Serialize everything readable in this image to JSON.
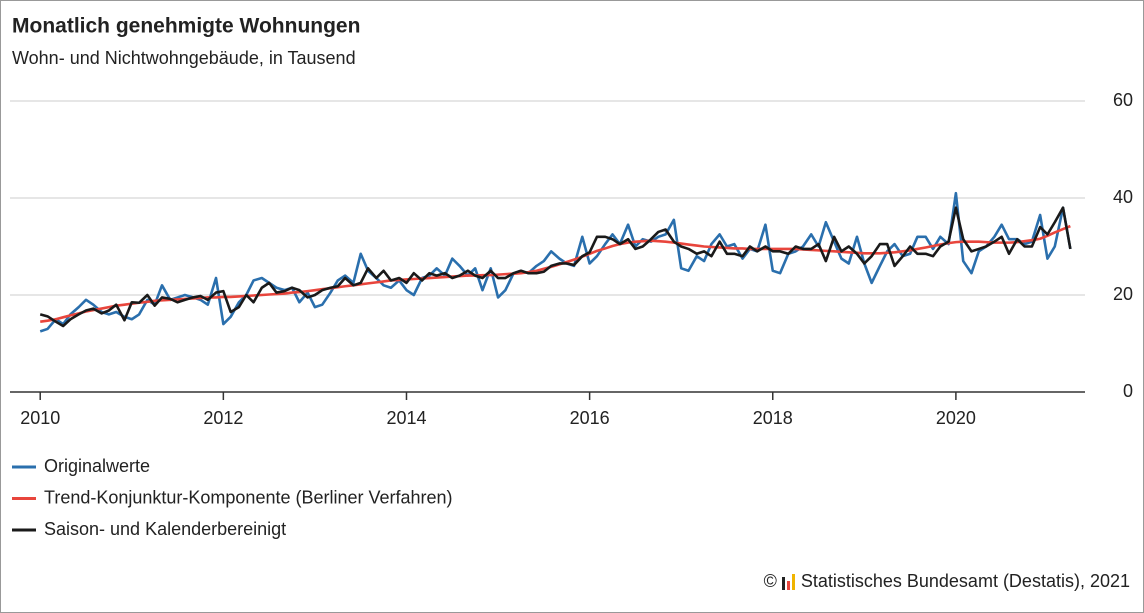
{
  "chart_data": {
    "type": "line",
    "title": "Monatlich genehmigte Wohnungen",
    "subtitle": "Wohn- und Nichtwohngebäude, in Tausend",
    "copyright_symbol": "©",
    "source": "Statistisches Bundesamt (Destatis), 2021",
    "x": [
      2010,
      2010.08,
      2010.17,
      2010.25,
      2010.33,
      2010.42,
      2010.5,
      2010.58,
      2010.67,
      2010.75,
      2010.83,
      2010.92,
      2011,
      2011.08,
      2011.17,
      2011.25,
      2011.33,
      2011.42,
      2011.5,
      2011.58,
      2011.67,
      2011.75,
      2011.83,
      2011.92,
      2012,
      2012.08,
      2012.17,
      2012.25,
      2012.33,
      2012.42,
      2012.5,
      2012.58,
      2012.67,
      2012.75,
      2012.83,
      2012.92,
      2013,
      2013.08,
      2013.17,
      2013.25,
      2013.33,
      2013.42,
      2013.5,
      2013.58,
      2013.67,
      2013.75,
      2013.83,
      2013.92,
      2014,
      2014.08,
      2014.17,
      2014.25,
      2014.33,
      2014.42,
      2014.5,
      2014.58,
      2014.67,
      2014.75,
      2014.83,
      2014.92,
      2015,
      2015.08,
      2015.17,
      2015.25,
      2015.33,
      2015.42,
      2015.5,
      2015.58,
      2015.67,
      2015.75,
      2015.83,
      2015.92,
      2016,
      2016.08,
      2016.17,
      2016.25,
      2016.33,
      2016.42,
      2016.5,
      2016.58,
      2016.67,
      2016.75,
      2016.83,
      2016.92,
      2017,
      2017.08,
      2017.17,
      2017.25,
      2017.33,
      2017.42,
      2017.5,
      2017.58,
      2017.67,
      2017.75,
      2017.83,
      2017.92,
      2018,
      2018.08,
      2018.17,
      2018.25,
      2018.33,
      2018.42,
      2018.5,
      2018.58,
      2018.67,
      2018.75,
      2018.83,
      2018.92,
      2019,
      2019.08,
      2019.17,
      2019.25,
      2019.33,
      2019.42,
      2019.5,
      2019.58,
      2019.67,
      2019.75,
      2019.83,
      2019.92,
      2020,
      2020.08,
      2020.17,
      2020.25,
      2020.33,
      2020.42,
      2020.5,
      2020.58,
      2020.67,
      2020.75,
      2020.83,
      2020.92,
      2021,
      2021.08,
      2021.17,
      2021.25
    ],
    "series": [
      {
        "name": "Originalwerte",
        "color": "#2a6fad",
        "values": [
          12.5,
          13.0,
          15.0,
          14.0,
          16.0,
          17.5,
          19.0,
          18.0,
          16.5,
          16.0,
          16.5,
          15.5,
          15.0,
          16.0,
          19.0,
          18.0,
          22.0,
          19.0,
          19.5,
          20.0,
          19.5,
          19.0,
          18.0,
          23.5,
          14.0,
          15.5,
          18.5,
          20.0,
          23.0,
          23.5,
          22.5,
          21.5,
          21.0,
          21.5,
          18.5,
          20.5,
          17.5,
          18.0,
          20.5,
          23.0,
          24.0,
          22.5,
          28.5,
          25.0,
          23.5,
          22.0,
          21.5,
          23.0,
          21.0,
          20.0,
          23.5,
          24.0,
          25.5,
          24.0,
          27.5,
          26.0,
          24.0,
          25.5,
          21.0,
          25.5,
          19.5,
          21.0,
          24.5,
          25.0,
          24.5,
          26.0,
          27.0,
          29.0,
          27.5,
          26.5,
          26.0,
          32.0,
          26.5,
          28.0,
          30.5,
          32.5,
          30.5,
          34.5,
          30.0,
          31.5,
          31.0,
          32.0,
          32.5,
          35.5,
          25.5,
          25.0,
          28.0,
          27.0,
          30.5,
          32.5,
          30.0,
          30.5,
          27.5,
          29.5,
          29.0,
          34.5,
          25.0,
          24.5,
          28.5,
          29.0,
          30.0,
          32.5,
          30.0,
          35.0,
          31.0,
          27.5,
          26.5,
          32.0,
          26.5,
          22.5,
          26.0,
          29.0,
          30.5,
          28.0,
          28.5,
          32.0,
          32.0,
          29.5,
          32.0,
          30.5,
          41.0,
          27.0,
          24.5,
          29.0,
          30.0,
          32.0,
          34.5,
          31.5,
          31.5,
          30.5,
          31.0,
          36.5,
          27.5,
          30.0,
          38.0,
          29.5
        ]
      },
      {
        "name": "Trend-Konjunktur-Komponente (Berliner Verfahren)",
        "color": "#e8453c",
        "values": [
          14.5,
          14.7,
          15.0,
          15.4,
          15.8,
          16.2,
          16.6,
          16.9,
          17.2,
          17.5,
          17.8,
          18.0,
          18.2,
          18.4,
          18.6,
          18.8,
          18.9,
          19.0,
          19.1,
          19.2,
          19.3,
          19.4,
          19.5,
          19.5,
          19.6,
          19.6,
          19.7,
          19.8,
          19.9,
          20.0,
          20.1,
          20.2,
          20.3,
          20.5,
          20.6,
          20.8,
          21.0,
          21.2,
          21.4,
          21.6,
          21.8,
          22.0,
          22.2,
          22.4,
          22.6,
          22.8,
          23.0,
          23.1,
          23.2,
          23.3,
          23.4,
          23.5,
          23.6,
          23.7,
          23.8,
          23.9,
          24.0,
          24.0,
          24.1,
          24.1,
          24.2,
          24.3,
          24.4,
          24.5,
          24.7,
          25.0,
          25.4,
          25.8,
          26.3,
          26.8,
          27.3,
          27.9,
          28.5,
          29.1,
          29.6,
          30.1,
          30.5,
          30.8,
          31.0,
          31.1,
          31.2,
          31.1,
          31.0,
          30.8,
          30.6,
          30.4,
          30.2,
          30.0,
          29.9,
          29.8,
          29.7,
          29.6,
          29.6,
          29.5,
          29.5,
          29.5,
          29.5,
          29.5,
          29.5,
          29.5,
          29.4,
          29.3,
          29.2,
          29.1,
          29.0,
          28.9,
          28.8,
          28.7,
          28.6,
          28.6,
          28.6,
          28.7,
          28.8,
          29.0,
          29.2,
          29.5,
          29.8,
          30.1,
          30.4,
          30.7,
          30.9,
          31.0,
          31.0,
          31.0,
          30.9,
          30.8,
          30.8,
          30.8,
          30.9,
          31.1,
          31.3,
          31.6,
          32.2,
          32.9,
          33.6,
          34.2
        ]
      },
      {
        "name": "Saison- und Kalenderbereinigt",
        "color": "#1a1a1a",
        "values": [
          16.0,
          15.6,
          14.5,
          13.6,
          15.0,
          16.0,
          16.8,
          17.2,
          16.2,
          16.8,
          18.0,
          14.8,
          18.5,
          18.4,
          20.0,
          17.8,
          19.5,
          19.2,
          18.5,
          19.0,
          19.5,
          19.8,
          19.0,
          20.5,
          20.8,
          16.5,
          17.5,
          20.0,
          18.5,
          21.5,
          22.5,
          20.5,
          20.8,
          21.5,
          21.0,
          19.5,
          20.0,
          21.0,
          21.5,
          21.8,
          23.5,
          22.0,
          22.5,
          25.5,
          23.5,
          25.0,
          23.0,
          23.5,
          22.5,
          24.5,
          23.0,
          24.5,
          24.0,
          24.5,
          23.5,
          24.0,
          25.0,
          24.0,
          23.5,
          25.0,
          23.5,
          23.5,
          24.5,
          25.0,
          24.5,
          24.5,
          24.8,
          26.0,
          26.5,
          26.5,
          26.2,
          28.0,
          28.8,
          32.0,
          32.0,
          31.5,
          30.5,
          31.5,
          29.5,
          30.0,
          31.5,
          33.0,
          33.5,
          31.0,
          30.0,
          29.5,
          28.5,
          29.0,
          28.0,
          31.0,
          28.5,
          28.5,
          28.0,
          30.0,
          29.0,
          30.0,
          29.0,
          29.0,
          28.5,
          30.0,
          29.5,
          29.5,
          30.5,
          27.0,
          32.0,
          29.0,
          30.0,
          28.5,
          26.5,
          28.0,
          30.5,
          30.5,
          26.0,
          28.0,
          30.0,
          28.5,
          28.5,
          28.0,
          30.0,
          31.0,
          38.0,
          31.5,
          29.0,
          29.5,
          30.0,
          31.0,
          32.0,
          28.5,
          31.5,
          30.0,
          30.0,
          34.0,
          32.5,
          35.0,
          38.0,
          29.5
        ]
      }
    ],
    "xlim": [
      2009.67,
      2021.41
    ],
    "xticks": [
      2010,
      2012,
      2014,
      2016,
      2018,
      2020
    ],
    "ylim": [
      0,
      60
    ],
    "yticks": [
      0,
      20,
      40,
      60
    ],
    "grid": true
  }
}
